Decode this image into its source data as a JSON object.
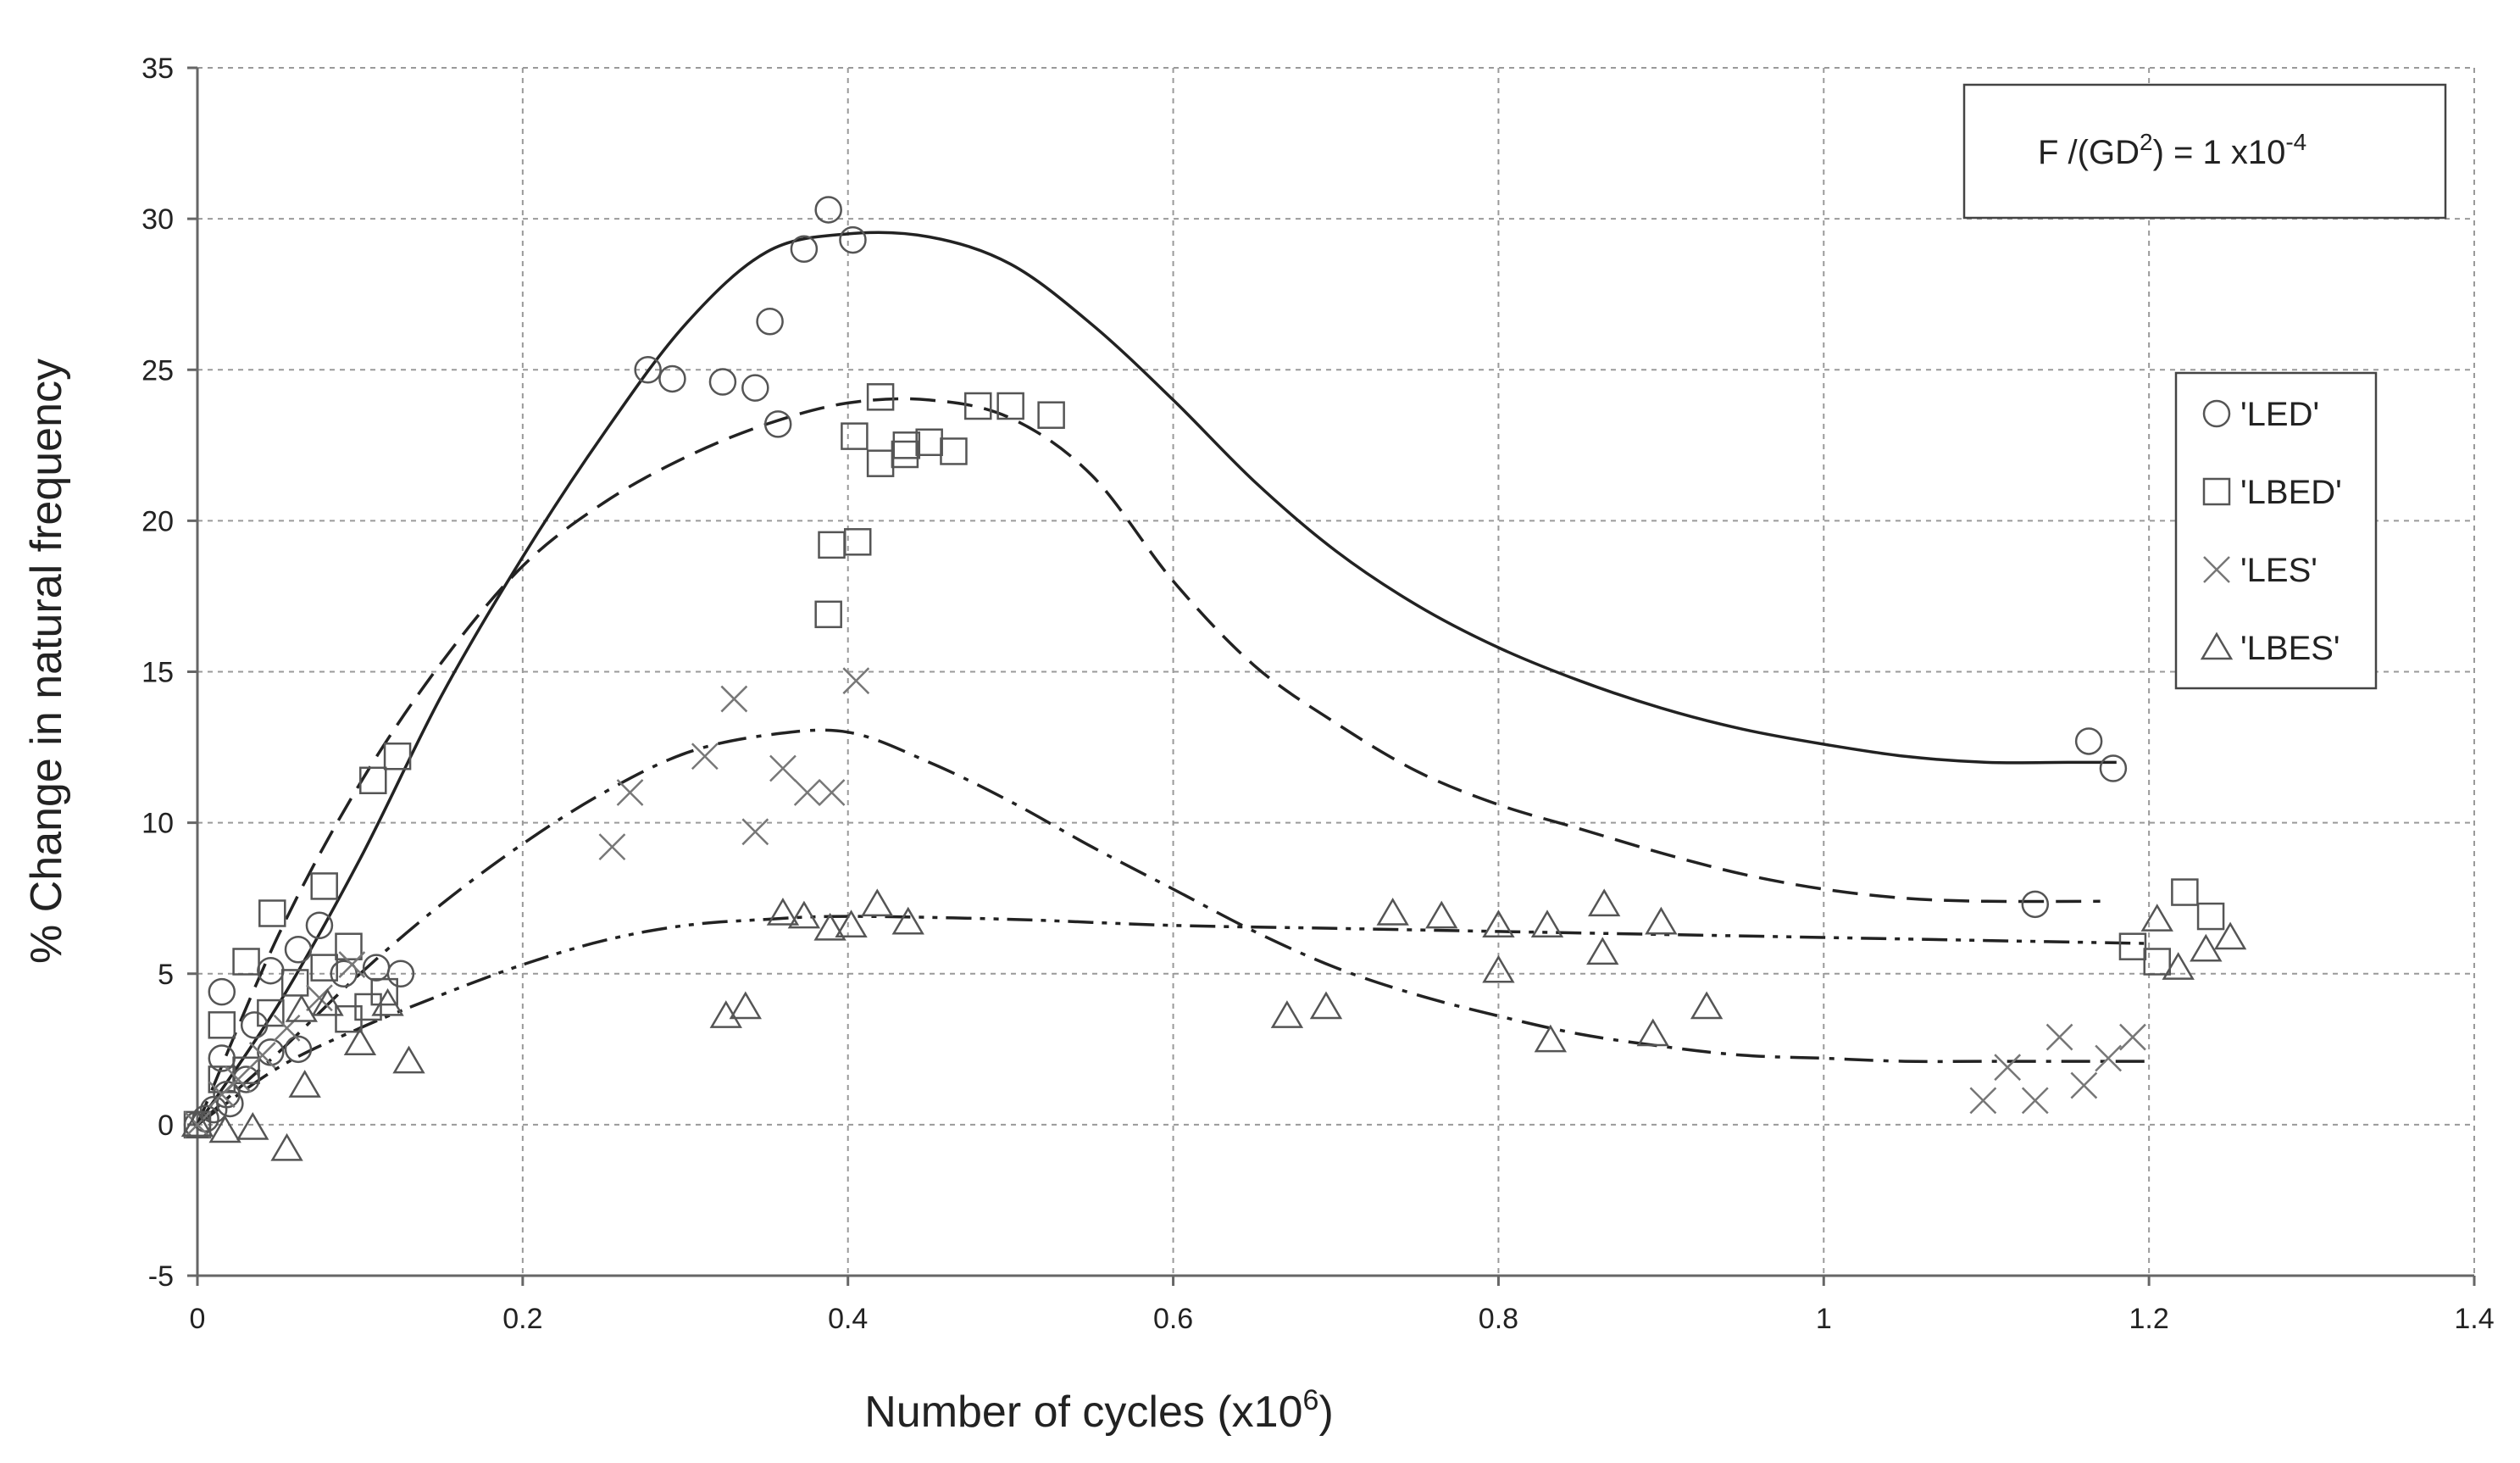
{
  "chart_data": {
    "type": "scatter",
    "title": "",
    "xlabel_main": "Number of cycles (x10",
    "xlabel_sup": "6",
    "xlabel_end": ")",
    "ylabel": "% Change in natural frequency",
    "xlim": [
      0,
      1.4
    ],
    "ylim": [
      -5,
      35
    ],
    "xticks": [
      0,
      0.2,
      0.4,
      0.6,
      0.8,
      1,
      1.2,
      1.4
    ],
    "xtick_labels": [
      "0",
      "0.2",
      "0.4",
      "0.6",
      "0.8",
      "1",
      "1.2",
      "1.4"
    ],
    "yticks": [
      -5,
      0,
      5,
      10,
      15,
      20,
      25,
      30,
      35
    ],
    "ytick_labels": [
      "-5",
      "0",
      "5",
      "10",
      "15",
      "20",
      "25",
      "30",
      "35"
    ],
    "grid": true,
    "legend_position": "right",
    "annotation": {
      "prefix": "F /(GD",
      "sup1": "2",
      "middle": ") = 1 x10",
      "sup2": "-4"
    },
    "series": [
      {
        "name": "'LED'",
        "marker": "circle",
        "points": [
          [
            0,
            0
          ],
          [
            0.005,
            0.2
          ],
          [
            0.01,
            0.5
          ],
          [
            0.015,
            2.2
          ],
          [
            0.015,
            4.4
          ],
          [
            0.018,
            1.0
          ],
          [
            0.02,
            0.7
          ],
          [
            0.03,
            1.5
          ],
          [
            0.035,
            3.3
          ],
          [
            0.045,
            2.4
          ],
          [
            0.045,
            5.1
          ],
          [
            0.062,
            2.5
          ],
          [
            0.062,
            5.8
          ],
          [
            0.075,
            6.6
          ],
          [
            0.09,
            5.0
          ],
          [
            0.11,
            5.2
          ],
          [
            0.125,
            5.0
          ],
          [
            0.277,
            25.0
          ],
          [
            0.292,
            24.7
          ],
          [
            0.323,
            24.6
          ],
          [
            0.343,
            24.4
          ],
          [
            0.357,
            23.2
          ],
          [
            0.352,
            26.6
          ],
          [
            0.373,
            29.0
          ],
          [
            0.388,
            30.3
          ],
          [
            0.403,
            29.3
          ],
          [
            1.13,
            7.3
          ],
          [
            1.163,
            12.7
          ],
          [
            1.178,
            11.8
          ]
        ]
      },
      {
        "name": "'LBED'",
        "marker": "square",
        "points": [
          [
            0,
            0
          ],
          [
            0.015,
            1.5
          ],
          [
            0.015,
            3.3
          ],
          [
            0.03,
            1.8
          ],
          [
            0.03,
            5.4
          ],
          [
            0.045,
            3.7
          ],
          [
            0.046,
            7.0
          ],
          [
            0.06,
            4.7
          ],
          [
            0.078,
            5.2
          ],
          [
            0.078,
            7.9
          ],
          [
            0.093,
            3.5
          ],
          [
            0.093,
            5.9
          ],
          [
            0.105,
            3.9
          ],
          [
            0.108,
            11.4
          ],
          [
            0.115,
            4.4
          ],
          [
            0.123,
            12.2
          ],
          [
            0.388,
            16.9
          ],
          [
            0.39,
            19.2
          ],
          [
            0.406,
            19.3
          ],
          [
            0.404,
            22.8
          ],
          [
            0.42,
            21.9
          ],
          [
            0.42,
            24.1
          ],
          [
            0.435,
            22.2
          ],
          [
            0.436,
            22.5
          ],
          [
            0.45,
            22.6
          ],
          [
            0.465,
            22.3
          ],
          [
            0.48,
            23.8
          ],
          [
            0.5,
            23.8
          ],
          [
            0.525,
            23.5
          ],
          [
            1.19,
            5.9
          ],
          [
            1.205,
            5.4
          ],
          [
            1.222,
            7.7
          ],
          [
            1.238,
            6.9
          ]
        ]
      },
      {
        "name": "'LES'",
        "marker": "cross",
        "points": [
          [
            0,
            0
          ],
          [
            0.015,
            1.0
          ],
          [
            0.025,
            1.5
          ],
          [
            0.04,
            2.3
          ],
          [
            0.055,
            3.2
          ],
          [
            0.075,
            4.2
          ],
          [
            0.095,
            5.3
          ],
          [
            0.255,
            9.2
          ],
          [
            0.266,
            11.0
          ],
          [
            0.312,
            12.2
          ],
          [
            0.33,
            14.1
          ],
          [
            0.343,
            9.7
          ],
          [
            0.36,
            11.8
          ],
          [
            0.375,
            11.0
          ],
          [
            0.39,
            11.0
          ],
          [
            0.405,
            14.7
          ],
          [
            1.098,
            0.8
          ],
          [
            1.113,
            1.9
          ],
          [
            1.13,
            0.8
          ],
          [
            1.145,
            2.9
          ],
          [
            1.16,
            1.3
          ],
          [
            1.175,
            2.2
          ],
          [
            1.19,
            2.9
          ]
        ]
      },
      {
        "name": "'LBES'",
        "marker": "triangle",
        "points": [
          [
            0,
            0
          ],
          [
            0.017,
            -0.2
          ],
          [
            0.034,
            -0.1
          ],
          [
            0.055,
            -0.8
          ],
          [
            0.064,
            3.8
          ],
          [
            0.066,
            1.3
          ],
          [
            0.08,
            4.0
          ],
          [
            0.1,
            2.7
          ],
          [
            0.117,
            4.0
          ],
          [
            0.13,
            2.1
          ],
          [
            0.325,
            3.6
          ],
          [
            0.337,
            3.9
          ],
          [
            0.36,
            7.0
          ],
          [
            0.373,
            6.9
          ],
          [
            0.389,
            6.5
          ],
          [
            0.402,
            6.6
          ],
          [
            0.418,
            7.3
          ],
          [
            0.437,
            6.7
          ],
          [
            0.67,
            3.6
          ],
          [
            0.694,
            3.9
          ],
          [
            0.735,
            7.0
          ],
          [
            0.765,
            6.9
          ],
          [
            0.8,
            6.6
          ],
          [
            0.8,
            5.1
          ],
          [
            0.83,
            6.6
          ],
          [
            0.832,
            2.8
          ],
          [
            0.865,
            7.3
          ],
          [
            0.864,
            5.7
          ],
          [
            0.895,
            3.0
          ],
          [
            0.9,
            6.7
          ],
          [
            0.928,
            3.9
          ],
          [
            1.205,
            6.8
          ],
          [
            1.218,
            5.2
          ],
          [
            1.235,
            5.8
          ],
          [
            1.25,
            6.2
          ]
        ]
      }
    ],
    "trend_lines": [
      {
        "name": "LED fit",
        "style": "solid",
        "points": [
          [
            0,
            0
          ],
          [
            0.05,
            4
          ],
          [
            0.1,
            8.8
          ],
          [
            0.15,
            14.2
          ],
          [
            0.2,
            18.8
          ],
          [
            0.25,
            22.9
          ],
          [
            0.3,
            26.5
          ],
          [
            0.35,
            28.9
          ],
          [
            0.4,
            29.5
          ],
          [
            0.45,
            29.4
          ],
          [
            0.5,
            28.5
          ],
          [
            0.55,
            26.5
          ],
          [
            0.6,
            24.0
          ],
          [
            0.65,
            21.3
          ],
          [
            0.7,
            19.0
          ],
          [
            0.75,
            17.2
          ],
          [
            0.8,
            15.8
          ],
          [
            0.85,
            14.7
          ],
          [
            0.9,
            13.8
          ],
          [
            0.95,
            13.1
          ],
          [
            1.0,
            12.6
          ],
          [
            1.05,
            12.2
          ],
          [
            1.1,
            12.0
          ],
          [
            1.15,
            12.0
          ],
          [
            1.18,
            12.0
          ]
        ]
      },
      {
        "name": "LBED fit",
        "style": "dashed",
        "points": [
          [
            0,
            0
          ],
          [
            0.05,
            6.3
          ],
          [
            0.1,
            11.3
          ],
          [
            0.15,
            15.3
          ],
          [
            0.2,
            18.5
          ],
          [
            0.25,
            20.6
          ],
          [
            0.3,
            22.1
          ],
          [
            0.35,
            23.2
          ],
          [
            0.4,
            23.9
          ],
          [
            0.45,
            24.0
          ],
          [
            0.5,
            23.4
          ],
          [
            0.55,
            21.5
          ],
          [
            0.6,
            18.0
          ],
          [
            0.65,
            15.2
          ],
          [
            0.7,
            13.3
          ],
          [
            0.75,
            11.7
          ],
          [
            0.8,
            10.6
          ],
          [
            0.85,
            9.8
          ],
          [
            0.9,
            9.0
          ],
          [
            0.95,
            8.3
          ],
          [
            1.0,
            7.8
          ],
          [
            1.05,
            7.5
          ],
          [
            1.1,
            7.4
          ],
          [
            1.17,
            7.4
          ]
        ]
      },
      {
        "name": "LES fit",
        "style": "dash-dot",
        "points": [
          [
            0,
            0
          ],
          [
            0.05,
            2.4
          ],
          [
            0.1,
            5.0
          ],
          [
            0.15,
            7.3
          ],
          [
            0.2,
            9.3
          ],
          [
            0.25,
            11.0
          ],
          [
            0.3,
            12.3
          ],
          [
            0.35,
            12.9
          ],
          [
            0.4,
            13.0
          ],
          [
            0.45,
            12.0
          ],
          [
            0.5,
            10.7
          ],
          [
            0.55,
            9.2
          ],
          [
            0.6,
            7.8
          ],
          [
            0.65,
            6.4
          ],
          [
            0.7,
            5.2
          ],
          [
            0.75,
            4.3
          ],
          [
            0.8,
            3.6
          ],
          [
            0.85,
            3.0
          ],
          [
            0.9,
            2.6
          ],
          [
            0.95,
            2.3
          ],
          [
            1.0,
            2.2
          ],
          [
            1.05,
            2.1
          ],
          [
            1.1,
            2.1
          ],
          [
            1.15,
            2.1
          ],
          [
            1.2,
            2.1
          ]
        ]
      },
      {
        "name": "LBES fit",
        "style": "dash-dot-dot",
        "points": [
          [
            0,
            0
          ],
          [
            0.05,
            1.9
          ],
          [
            0.1,
            3.2
          ],
          [
            0.15,
            4.3
          ],
          [
            0.2,
            5.3
          ],
          [
            0.25,
            6.1
          ],
          [
            0.3,
            6.6
          ],
          [
            0.35,
            6.8
          ],
          [
            0.4,
            6.9
          ],
          [
            0.5,
            6.8
          ],
          [
            0.6,
            6.6
          ],
          [
            0.7,
            6.5
          ],
          [
            0.8,
            6.4
          ],
          [
            0.9,
            6.3
          ],
          [
            1.0,
            6.2
          ],
          [
            1.1,
            6.1
          ],
          [
            1.2,
            6.0
          ]
        ]
      }
    ]
  }
}
